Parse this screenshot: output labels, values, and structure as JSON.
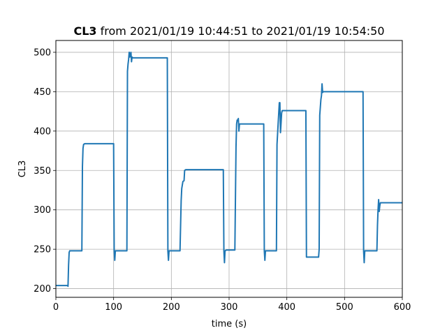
{
  "chart_data": {
    "type": "line",
    "title_bold": "CL3",
    "title_rest": "from 2021/01/19 10:44:51 to 2021/01/19 10:54:50",
    "xlabel": "time (s)",
    "ylabel": "CL3",
    "xlim": [
      0,
      600
    ],
    "ylim": [
      189,
      515
    ],
    "xticks": [
      0,
      100,
      200,
      300,
      400,
      500,
      600
    ],
    "yticks": [
      200,
      250,
      300,
      350,
      400,
      450,
      500
    ],
    "grid": true,
    "line_color": "#1f77b4",
    "series": [
      {
        "x": [
          0,
          20,
          21,
          22,
          23,
          24,
          25,
          27,
          45,
          46,
          47,
          48,
          50,
          55,
          100,
          101,
          102,
          103,
          105,
          120,
          123,
          124,
          125,
          126,
          127,
          128,
          130,
          131,
          132,
          133,
          135,
          193,
          194,
          195,
          196,
          198,
          215,
          217,
          218,
          220,
          222,
          223,
          225,
          228,
          290,
          291,
          292,
          293,
          295,
          310,
          312,
          313,
          314,
          315,
          316,
          317,
          318,
          320,
          360,
          361,
          362,
          363,
          365,
          382,
          383,
          385,
          387,
          388,
          389,
          390,
          391,
          392,
          393,
          395,
          433,
          434,
          435,
          437,
          455,
          456,
          457,
          458,
          459,
          460,
          461,
          462,
          463,
          465,
          470,
          532,
          533,
          534,
          535,
          537,
          556,
          557,
          558,
          559,
          560,
          561,
          562,
          565,
          600
        ],
        "y": [
          204,
          204,
          203,
          230,
          246,
          248,
          248,
          248,
          248,
          355,
          378,
          383,
          384,
          384,
          384,
          248,
          236,
          248,
          248,
          248,
          248,
          476,
          485,
          491,
          500,
          494,
          500,
          488,
          494,
          493,
          493,
          493,
          248,
          236,
          248,
          248,
          248,
          312,
          327,
          336,
          337,
          350,
          351,
          351,
          351,
          248,
          233,
          248,
          249,
          249,
          380,
          409,
          414,
          413,
          416,
          400,
          409,
          409,
          409,
          248,
          236,
          248,
          248,
          248,
          383,
          410,
          436,
          436,
          398,
          410,
          423,
          426,
          426,
          426,
          426,
          240,
          240,
          240,
          240,
          250,
          420,
          430,
          440,
          445,
          460,
          449,
          450,
          450,
          450,
          450,
          248,
          233,
          248,
          248,
          248,
          280,
          300,
          313,
          298,
          305,
          309,
          309,
          309
        ]
      }
    ]
  }
}
